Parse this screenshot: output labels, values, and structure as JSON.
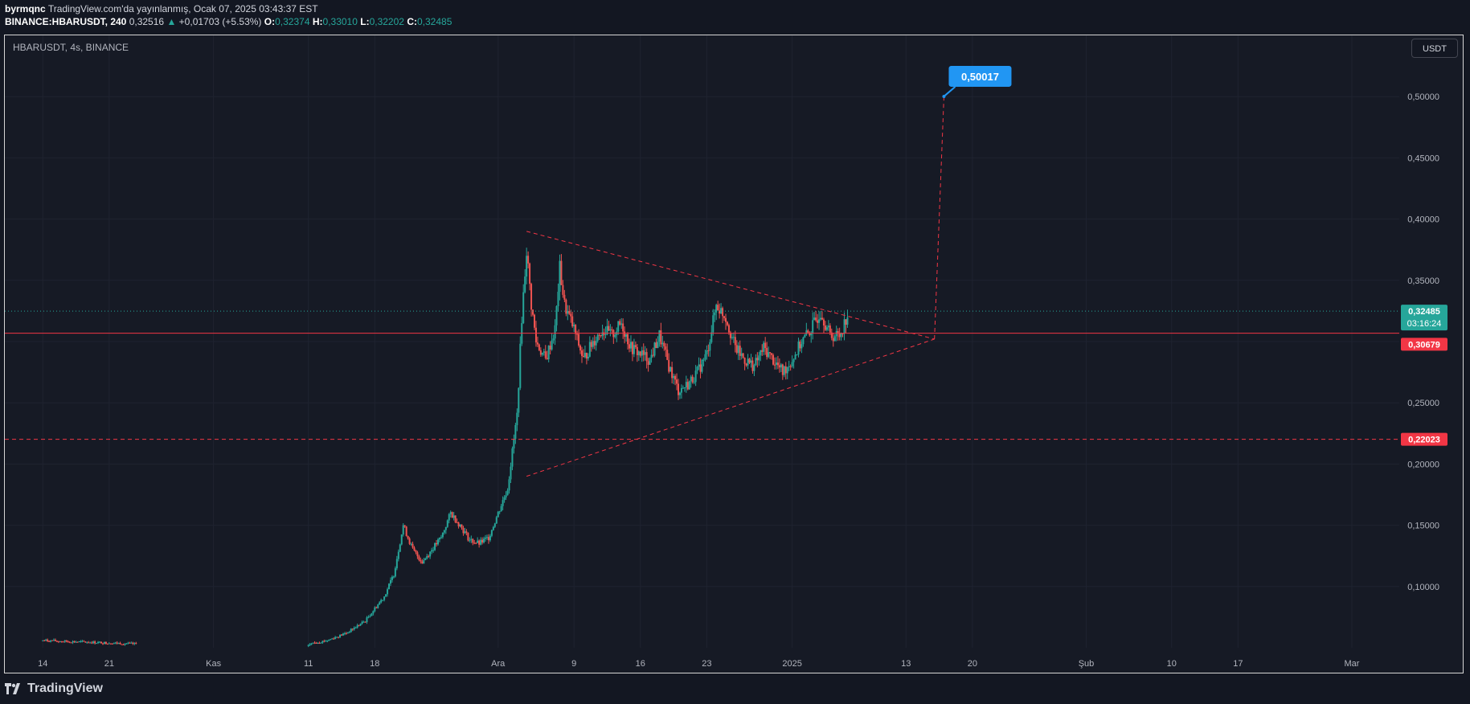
{
  "header": {
    "author": "byrmqnc",
    "published_text": "TradingView.com'da yayınlanmış, Ocak 07, 2025 03:43:37 EST",
    "symbol_line": "BINANCE:HBARUSDT, 240",
    "last": "0,32516",
    "change_arrow": "▲",
    "change": "+0,01703 (+5.53%)",
    "o_label": "O:",
    "o": "0,32374",
    "h_label": "H:",
    "h": "0,33010",
    "l_label": "L:",
    "l": "0,32202",
    "c_label": "C:",
    "c": "0,32485"
  },
  "chart_title": "HBARUSDT, 4s, BINANCE",
  "currency_button": "USDT",
  "footer": {
    "brand": "TradingView",
    "logo_icon": "tradingview-logo-icon"
  },
  "colors": {
    "bg": "#161a25",
    "grid": "#1f2330",
    "text": "#b2b5be",
    "up": "#26a69a",
    "down": "#ef5350",
    "drawing": "#f23645",
    "callout": "#2196f3"
  },
  "chart_data": {
    "type": "candlestick",
    "title": "HBARUSDT, 4s, BINANCE",
    "ylim": [
      0.05,
      0.55
    ],
    "y_ticks": [
      0.1,
      0.15,
      0.2,
      0.25,
      0.3,
      0.35,
      0.4,
      0.45,
      0.5
    ],
    "y_tick_labels": [
      "0,10000",
      "0,15000",
      "0,20000",
      "0,25000",
      "0,30000",
      "0,35000",
      "0,40000",
      "0,45000",
      "0,50000"
    ],
    "x_ticks": [
      {
        "label": "14",
        "date": "2024-10-14"
      },
      {
        "label": "21",
        "date": "2024-10-21"
      },
      {
        "label": "Kas",
        "date": "2024-11-01"
      },
      {
        "label": "11",
        "date": "2024-11-11"
      },
      {
        "label": "18",
        "date": "2024-11-18"
      },
      {
        "label": "Ara",
        "date": "2024-12-01"
      },
      {
        "label": "9",
        "date": "2024-12-09"
      },
      {
        "label": "16",
        "date": "2024-12-16"
      },
      {
        "label": "23",
        "date": "2024-12-23"
      },
      {
        "label": "2025",
        "date": "2025-01-01"
      },
      {
        "label": "13",
        "date": "2025-01-13"
      },
      {
        "label": "20",
        "date": "2025-01-20"
      },
      {
        "label": "Şub",
        "date": "2025-02-01"
      },
      {
        "label": "10",
        "date": "2025-02-10"
      },
      {
        "label": "17",
        "date": "2025-02-17"
      },
      {
        "label": "Mar",
        "date": "2025-03-01"
      }
    ],
    "x_range": [
      "2024-10-10",
      "2025-03-06"
    ],
    "price_path": [
      [
        "2024-10-14",
        0.056
      ],
      [
        "2024-10-17",
        0.055
      ],
      [
        "2024-10-21",
        0.054
      ],
      [
        "2024-10-24",
        0.053
      ],
      [
        "2024-11-11",
        0.053
      ],
      [
        "2024-11-13",
        0.056
      ],
      [
        "2024-11-15",
        0.062
      ],
      [
        "2024-11-17",
        0.072
      ],
      [
        "2024-11-19",
        0.092
      ],
      [
        "2024-11-20",
        0.11
      ],
      [
        "2024-11-21",
        0.15
      ],
      [
        "2024-11-22",
        0.13
      ],
      [
        "2024-11-23",
        0.12
      ],
      [
        "2024-11-24",
        0.13
      ],
      [
        "2024-11-25",
        0.14
      ],
      [
        "2024-11-26",
        0.16
      ],
      [
        "2024-11-27",
        0.15
      ],
      [
        "2024-11-28",
        0.138
      ],
      [
        "2024-11-29",
        0.135
      ],
      [
        "2024-11-30",
        0.14
      ],
      [
        "2024-12-01",
        0.16
      ],
      [
        "2024-12-02",
        0.18
      ],
      [
        "2024-12-03",
        0.24
      ],
      [
        "2024-12-03T12",
        0.32
      ],
      [
        "2024-12-04",
        0.375
      ],
      [
        "2024-12-04T12",
        0.33
      ],
      [
        "2024-12-05",
        0.3
      ],
      [
        "2024-12-06",
        0.285
      ],
      [
        "2024-12-07",
        0.31
      ],
      [
        "2024-12-07T12",
        0.36
      ],
      [
        "2024-12-08",
        0.33
      ],
      [
        "2024-12-09",
        0.31
      ],
      [
        "2024-12-10",
        0.285
      ],
      [
        "2024-12-11",
        0.3
      ],
      [
        "2024-12-12",
        0.31
      ],
      [
        "2024-12-13",
        0.305
      ],
      [
        "2024-12-14",
        0.315
      ],
      [
        "2024-12-15",
        0.295
      ],
      [
        "2024-12-16",
        0.29
      ],
      [
        "2024-12-17",
        0.285
      ],
      [
        "2024-12-18",
        0.305
      ],
      [
        "2024-12-19",
        0.28
      ],
      [
        "2024-12-20",
        0.26
      ],
      [
        "2024-12-21",
        0.265
      ],
      [
        "2024-12-22",
        0.275
      ],
      [
        "2024-12-23",
        0.29
      ],
      [
        "2024-12-24",
        0.33
      ],
      [
        "2024-12-25",
        0.32
      ],
      [
        "2024-12-26",
        0.295
      ],
      [
        "2024-12-27",
        0.285
      ],
      [
        "2024-12-28",
        0.28
      ],
      [
        "2024-12-29",
        0.295
      ],
      [
        "2024-12-30",
        0.285
      ],
      [
        "2024-12-31",
        0.275
      ],
      [
        "2025-01-01",
        0.285
      ],
      [
        "2025-01-02",
        0.3
      ],
      [
        "2025-01-03",
        0.31
      ],
      [
        "2025-01-04",
        0.325
      ],
      [
        "2025-01-05",
        0.305
      ],
      [
        "2025-01-06",
        0.305
      ],
      [
        "2025-01-07",
        0.325
      ]
    ],
    "annotations": {
      "last_price": {
        "value": 0.32485,
        "label": "0,32485",
        "countdown": "03:16:24"
      },
      "horizontal_line": {
        "value": 0.30679,
        "label": "0,30679"
      },
      "dashed_support": {
        "value": 0.22023,
        "label": "0,22023"
      },
      "triangle_upper": [
        [
          "2024-12-04",
          0.39
        ],
        [
          "2025-01-16",
          0.302
        ]
      ],
      "triangle_lower": [
        [
          "2024-12-04",
          0.19
        ],
        [
          "2025-01-16",
          0.302
        ]
      ],
      "projection": [
        [
          "2025-01-16",
          0.302
        ],
        [
          "2025-01-17",
          0.50017
        ]
      ],
      "target": {
        "value": 0.50017,
        "label": "0,50017"
      }
    }
  }
}
